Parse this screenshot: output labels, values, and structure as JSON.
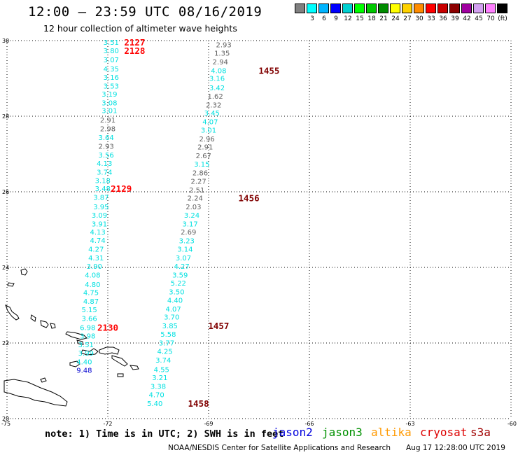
{
  "header": {
    "title": "12:00 – 23:59 UTC 08/16/2019",
    "subtitle": "12 hour collection of altimeter wave heights"
  },
  "legend": {
    "swatches": [
      {
        "color": "#808080",
        "label": ""
      },
      {
        "color": "#00ffff",
        "label": "3"
      },
      {
        "color": "#00b4ff",
        "label": "6"
      },
      {
        "color": "#0000ff",
        "label": "9"
      },
      {
        "color": "#00d0d0",
        "label": "12"
      },
      {
        "color": "#00ff00",
        "label": "15"
      },
      {
        "color": "#00c800",
        "label": "18"
      },
      {
        "color": "#008c00",
        "label": "21"
      },
      {
        "color": "#ffff00",
        "label": "24"
      },
      {
        "color": "#ffd200",
        "label": "27"
      },
      {
        "color": "#ff8c00",
        "label": "30"
      },
      {
        "color": "#ff0000",
        "label": "33"
      },
      {
        "color": "#c80000",
        "label": "36"
      },
      {
        "color": "#8c0000",
        "label": "39"
      },
      {
        "color": "#a000a0",
        "label": "42"
      },
      {
        "color": "#d2a0f0",
        "label": "45"
      },
      {
        "color": "#ff80ff",
        "label": "70"
      },
      {
        "color": "#000000",
        "label": "(ft)"
      }
    ]
  },
  "map": {
    "lat_min": 20,
    "lat_max": 30,
    "lon_min": -75,
    "lon_max": -60,
    "lat_labels": [
      "30",
      "28",
      "26",
      "24",
      "22",
      "20"
    ],
    "lon_labels": [
      "-75",
      "-72",
      "-69",
      "-66",
      "-63",
      "-60"
    ],
    "colors": {
      "cyan": "#00e0e0",
      "gray": "#606060",
      "blue": "#0000d0",
      "red": "#ff0000",
      "darkred": "#800000"
    },
    "track_a": [
      {
        "v": "3.51",
        "lat": 29.96,
        "lon": -71.9,
        "c": "cyan"
      },
      {
        "v": "3.80",
        "lat": 29.74,
        "lon": -71.9,
        "c": "cyan"
      },
      {
        "v": "3.07",
        "lat": 29.5,
        "lon": -71.9,
        "c": "cyan"
      },
      {
        "v": "4.35",
        "lat": 29.26,
        "lon": -71.9,
        "c": "cyan"
      },
      {
        "v": "3.16",
        "lat": 29.04,
        "lon": -71.9,
        "c": "cyan"
      },
      {
        "v": "3.53",
        "lat": 28.81,
        "lon": -71.9,
        "c": "cyan"
      },
      {
        "v": "3.19",
        "lat": 28.59,
        "lon": -71.95,
        "c": "cyan"
      },
      {
        "v": "3.08",
        "lat": 28.36,
        "lon": -71.95,
        "c": "cyan"
      },
      {
        "v": "3.01",
        "lat": 28.16,
        "lon": -71.95,
        "c": "cyan"
      },
      {
        "v": "2.91",
        "lat": 27.91,
        "lon": -72.0,
        "c": "gray"
      },
      {
        "v": "2.98",
        "lat": 27.68,
        "lon": -72.0,
        "c": "gray"
      },
      {
        "v": "3.64",
        "lat": 27.44,
        "lon": -72.05,
        "c": "cyan"
      },
      {
        "v": "2.93",
        "lat": 27.21,
        "lon": -72.05,
        "c": "gray"
      },
      {
        "v": "3.56",
        "lat": 26.98,
        "lon": -72.05,
        "c": "cyan"
      },
      {
        "v": "4.13",
        "lat": 26.76,
        "lon": -72.1,
        "c": "cyan"
      },
      {
        "v": "3.74",
        "lat": 26.53,
        "lon": -72.1,
        "c": "cyan"
      },
      {
        "v": "3.18",
        "lat": 26.31,
        "lon": -72.15,
        "c": "cyan"
      },
      {
        "v": "3.48",
        "lat": 26.09,
        "lon": -72.15,
        "c": "cyan"
      },
      {
        "v": "3.87",
        "lat": 25.86,
        "lon": -72.2,
        "c": "cyan"
      },
      {
        "v": "3.95",
        "lat": 25.61,
        "lon": -72.2,
        "c": "cyan"
      },
      {
        "v": "3.09",
        "lat": 25.39,
        "lon": -72.25,
        "c": "cyan"
      },
      {
        "v": "3.91",
        "lat": 25.16,
        "lon": -72.25,
        "c": "cyan"
      },
      {
        "v": "4.13",
        "lat": 24.94,
        "lon": -72.3,
        "c": "cyan"
      },
      {
        "v": "4.74",
        "lat": 24.72,
        "lon": -72.3,
        "c": "cyan"
      },
      {
        "v": "4.27",
        "lat": 24.49,
        "lon": -72.35,
        "c": "cyan"
      },
      {
        "v": "4.31",
        "lat": 24.26,
        "lon": -72.35,
        "c": "cyan"
      },
      {
        "v": "3.90",
        "lat": 24.04,
        "lon": -72.4,
        "c": "cyan"
      },
      {
        "v": "4.08",
        "lat": 23.81,
        "lon": -72.45,
        "c": "cyan"
      },
      {
        "v": "4.80",
        "lat": 23.56,
        "lon": -72.45,
        "c": "cyan"
      },
      {
        "v": "4.75",
        "lat": 23.34,
        "lon": -72.5,
        "c": "cyan"
      },
      {
        "v": "4.87",
        "lat": 23.11,
        "lon": -72.5,
        "c": "cyan"
      },
      {
        "v": "5.15",
        "lat": 22.89,
        "lon": -72.55,
        "c": "cyan"
      },
      {
        "v": "3.66",
        "lat": 22.66,
        "lon": -72.55,
        "c": "cyan"
      },
      {
        "v": "6.98",
        "lat": 22.42,
        "lon": -72.6,
        "c": "cyan"
      },
      {
        "v": "3.98",
        "lat": 22.19,
        "lon": -72.6,
        "c": "cyan"
      },
      {
        "v": "3.51",
        "lat": 21.96,
        "lon": -72.65,
        "c": "cyan"
      },
      {
        "v": "3.99",
        "lat": 21.74,
        "lon": -72.65,
        "c": "cyan"
      },
      {
        "v": "4.40",
        "lat": 21.51,
        "lon": -72.7,
        "c": "cyan"
      },
      {
        "v": "9.48",
        "lat": 21.29,
        "lon": -72.7,
        "c": "blue"
      }
    ],
    "track_b": [
      {
        "v": "2.93",
        "lat": 29.9,
        "lon": -68.55,
        "c": "gray"
      },
      {
        "v": "1.35",
        "lat": 29.68,
        "lon": -68.6,
        "c": "gray"
      },
      {
        "v": "2.94",
        "lat": 29.44,
        "lon": -68.65,
        "c": "gray"
      },
      {
        "v": "4.08",
        "lat": 29.21,
        "lon": -68.7,
        "c": "cyan"
      },
      {
        "v": "3.16",
        "lat": 29.01,
        "lon": -68.75,
        "c": "cyan"
      },
      {
        "v": "3.42",
        "lat": 28.76,
        "lon": -68.75,
        "c": "cyan"
      },
      {
        "v": "1.62",
        "lat": 28.54,
        "lon": -68.8,
        "c": "gray"
      },
      {
        "v": "2.32",
        "lat": 28.31,
        "lon": -68.85,
        "c": "gray"
      },
      {
        "v": "3.45",
        "lat": 28.09,
        "lon": -68.9,
        "c": "cyan"
      },
      {
        "v": "4.07",
        "lat": 27.86,
        "lon": -68.95,
        "c": "cyan"
      },
      {
        "v": "3.01",
        "lat": 27.64,
        "lon": -69.0,
        "c": "cyan"
      },
      {
        "v": "2.96",
        "lat": 27.41,
        "lon": -69.05,
        "c": "gray"
      },
      {
        "v": "2.91",
        "lat": 27.19,
        "lon": -69.1,
        "c": "gray"
      },
      {
        "v": "2.67",
        "lat": 26.96,
        "lon": -69.15,
        "c": "gray"
      },
      {
        "v": "3.15",
        "lat": 26.74,
        "lon": -69.2,
        "c": "cyan"
      },
      {
        "v": "2.86",
        "lat": 26.51,
        "lon": -69.25,
        "c": "gray"
      },
      {
        "v": "2.27",
        "lat": 26.29,
        "lon": -69.3,
        "c": "gray"
      },
      {
        "v": "2.51",
        "lat": 26.06,
        "lon": -69.35,
        "c": "gray"
      },
      {
        "v": "2.24",
        "lat": 25.84,
        "lon": -69.4,
        "c": "gray"
      },
      {
        "v": "2.03",
        "lat": 25.61,
        "lon": -69.45,
        "c": "gray"
      },
      {
        "v": "3.24",
        "lat": 25.39,
        "lon": -69.5,
        "c": "cyan"
      },
      {
        "v": "3.17",
        "lat": 25.16,
        "lon": -69.55,
        "c": "cyan"
      },
      {
        "v": "2.69",
        "lat": 24.94,
        "lon": -69.6,
        "c": "gray"
      },
      {
        "v": "3.23",
        "lat": 24.71,
        "lon": -69.65,
        "c": "cyan"
      },
      {
        "v": "3.14",
        "lat": 24.49,
        "lon": -69.7,
        "c": "cyan"
      },
      {
        "v": "3.07",
        "lat": 24.26,
        "lon": -69.75,
        "c": "cyan"
      },
      {
        "v": "4.27",
        "lat": 24.04,
        "lon": -69.8,
        "c": "cyan"
      },
      {
        "v": "3.59",
        "lat": 23.81,
        "lon": -69.85,
        "c": "cyan"
      },
      {
        "v": "5.22",
        "lat": 23.59,
        "lon": -69.9,
        "c": "cyan"
      },
      {
        "v": "3.50",
        "lat": 23.36,
        "lon": -69.95,
        "c": "cyan"
      },
      {
        "v": "4.40",
        "lat": 23.14,
        "lon": -70.0,
        "c": "cyan"
      },
      {
        "v": "4.07",
        "lat": 22.91,
        "lon": -70.05,
        "c": "cyan"
      },
      {
        "v": "3.70",
        "lat": 22.69,
        "lon": -70.1,
        "c": "cyan"
      },
      {
        "v": "3.85",
        "lat": 22.46,
        "lon": -70.15,
        "c": "cyan"
      },
      {
        "v": "5.58",
        "lat": 22.24,
        "lon": -70.2,
        "c": "cyan"
      },
      {
        "v": "3.77",
        "lat": 22.01,
        "lon": -70.25,
        "c": "cyan"
      },
      {
        "v": "4.25",
        "lat": 21.79,
        "lon": -70.3,
        "c": "cyan"
      },
      {
        "v": "3.74",
        "lat": 21.56,
        "lon": -70.35,
        "c": "cyan"
      },
      {
        "v": "4.55",
        "lat": 21.31,
        "lon": -70.4,
        "c": "cyan"
      },
      {
        "v": "3.21",
        "lat": 21.09,
        "lon": -70.45,
        "c": "cyan"
      },
      {
        "v": "3.38",
        "lat": 20.86,
        "lon": -70.5,
        "c": "cyan"
      },
      {
        "v": "4.70",
        "lat": 20.64,
        "lon": -70.55,
        "c": "cyan"
      },
      {
        "v": "5.40",
        "lat": 20.41,
        "lon": -70.6,
        "c": "cyan"
      }
    ],
    "times": [
      {
        "t": "2127",
        "lat": 29.96,
        "lon": -71.2,
        "c": "red"
      },
      {
        "t": "2128",
        "lat": 29.74,
        "lon": -71.2,
        "c": "red"
      },
      {
        "t": "2129",
        "lat": 26.09,
        "lon": -71.6,
        "c": "red"
      },
      {
        "t": "2130",
        "lat": 22.42,
        "lon": -72.0,
        "c": "red"
      },
      {
        "t": "1455",
        "lat": 29.21,
        "lon": -67.2,
        "c": "darkred"
      },
      {
        "t": "1456",
        "lat": 25.84,
        "lon": -67.8,
        "c": "darkred"
      },
      {
        "t": "1457",
        "lat": 22.46,
        "lon": -68.7,
        "c": "darkred"
      },
      {
        "t": "1458",
        "lat": 20.41,
        "lon": -69.3,
        "c": "darkred"
      }
    ]
  },
  "footer": {
    "note": "note: 1) Time is in UTC; 2) SWH is in feet",
    "satellites": [
      {
        "name": "jason2",
        "color": "#0000dd"
      },
      {
        "name": "jason3",
        "color": "#009000"
      },
      {
        "name": "altika",
        "color": "#ff9900"
      },
      {
        "name": "cryosat",
        "color": "#dd0000"
      },
      {
        "name": "s3a",
        "color": "#a00000"
      }
    ],
    "credit": "NOAA/NESDIS Center for Satellite Applications and Research",
    "timestamp": "Aug 17 12:28:00 UTC 2019"
  }
}
